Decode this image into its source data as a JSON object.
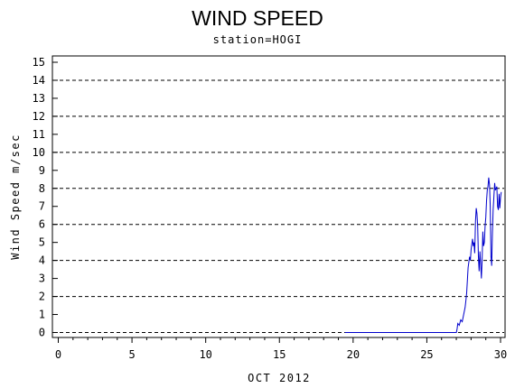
{
  "chart_data": {
    "type": "line",
    "title": "WIND SPEED",
    "subtitle": "station=HOGI",
    "xlabel": "OCT 2012",
    "ylabel": "Wind Speed m/sec",
    "xlim": [
      0,
      30
    ],
    "ylim": [
      0,
      15
    ],
    "x_ticks": [
      0,
      5,
      10,
      15,
      20,
      25,
      30
    ],
    "y_ticks": [
      0,
      1,
      2,
      3,
      4,
      5,
      6,
      7,
      8,
      9,
      10,
      11,
      12,
      13,
      14,
      15
    ],
    "reference_lines_y": [
      0,
      2,
      4,
      6,
      8,
      10,
      12,
      14
    ],
    "line_color": "#0000cc",
    "series": [
      {
        "x": [
          19.45,
          27.0,
          27.05,
          27.1,
          27.2,
          27.3,
          27.4,
          27.5,
          27.6,
          27.65,
          27.7,
          27.8,
          27.9,
          27.95,
          28.0,
          28.1,
          28.15,
          28.2,
          28.25,
          28.3,
          28.35,
          28.4,
          28.45,
          28.5,
          28.55,
          28.6,
          28.65,
          28.7,
          28.75,
          28.8,
          28.85,
          28.9,
          28.95,
          29.0,
          29.05,
          29.1,
          29.15,
          29.2,
          29.25,
          29.3,
          29.35,
          29.4,
          29.45,
          29.5,
          29.55,
          29.6,
          29.65,
          29.7,
          29.75,
          29.8,
          29.85,
          29.9,
          29.95,
          30.0,
          30.05
        ],
        "y": [
          0.0,
          0.0,
          0.2,
          0.5,
          0.4,
          0.7,
          0.6,
          1.0,
          1.4,
          1.8,
          2.2,
          3.6,
          4.2,
          4.0,
          4.6,
          5.2,
          4.8,
          5.0,
          4.4,
          6.2,
          6.9,
          6.6,
          5.9,
          4.2,
          3.4,
          4.5,
          3.8,
          3.0,
          4.0,
          5.6,
          4.8,
          5.0,
          5.9,
          6.4,
          7.3,
          7.9,
          8.1,
          8.6,
          8.2,
          7.0,
          4.2,
          3.7,
          5.5,
          6.8,
          7.6,
          8.3,
          7.9,
          8.0,
          8.1,
          7.0,
          6.8,
          7.7,
          6.9,
          7.5,
          7.8
        ]
      }
    ]
  }
}
